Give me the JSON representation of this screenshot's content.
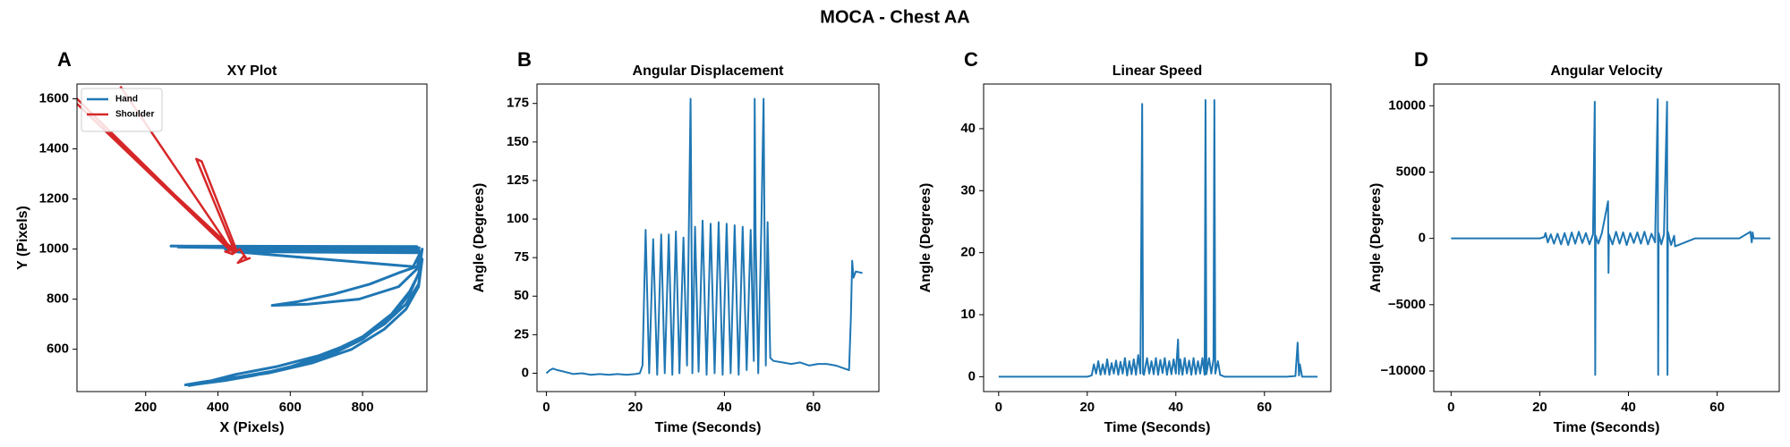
{
  "title": "MOCA - Chest AA",
  "chart_data": [
    {
      "type": "line",
      "panel_label": "A",
      "title": "XY Plot",
      "x_label": "X (Pixels)",
      "y_label": "Y (Pixels)",
      "xlim": [
        10,
        978
      ],
      "ylim": [
        431,
        1659
      ],
      "xticks": [
        200,
        400,
        600,
        800
      ],
      "yticks": [
        600,
        800,
        1000,
        1200,
        1400,
        1600
      ],
      "legend": "upper left",
      "series": [
        {
          "name": "Hand",
          "color": "#1f77b4",
          "x": [
            960,
            270,
            950,
            290,
            955,
            420,
            960,
            440,
            940,
            965,
            955,
            930,
            880,
            800,
            700,
            600,
            500,
            420,
            340,
            310,
            360,
            460,
            580,
            700,
            800,
            880,
            930,
            960,
            955,
            920,
            860,
            780,
            680,
            560,
            450,
            370,
            320,
            420,
            540,
            660,
            770,
            860,
            920,
            955,
            965,
            950,
            900,
            820,
            720,
            620,
            550,
            650,
            790,
            900,
            950,
            960
          ],
          "values": [
            1005,
            1012,
            1010,
            1008,
            995,
            1000,
            985,
            990,
            930,
            1000,
            900,
            830,
            740,
            650,
            580,
            530,
            495,
            475,
            460,
            458,
            470,
            490,
            520,
            570,
            640,
            730,
            820,
            920,
            860,
            780,
            700,
            630,
            575,
            530,
            500,
            470,
            455,
            480,
            505,
            545,
            600,
            680,
            760,
            850,
            960,
            930,
            905,
            860,
            820,
            790,
            775,
            780,
            800,
            850,
            920,
            990
          ]
        },
        {
          "name": "Shoulder",
          "color": "#d62728",
          "x": [
            130,
            440,
            10,
            430,
            10,
            445,
            340,
            355,
            450,
            420,
            440,
            460,
            480,
            470,
            455,
            490
          ],
          "values": [
            1650,
            990,
            1600,
            1000,
            1580,
            995,
            1360,
            1350,
            1000,
            990,
            980,
            1000,
            960,
            970,
            945,
            965
          ]
        }
      ]
    },
    {
      "type": "line",
      "panel_label": "B",
      "title": "Angular Displacement",
      "x_label": "Time (Seconds)",
      "y_label": "Angle (Degrees)",
      "xlim": [
        -2.1,
        74.7
      ],
      "ylim": [
        -11.9,
        187.6
      ],
      "xticks": [
        0,
        20,
        40,
        60
      ],
      "yticks": [
        0,
        25,
        50,
        75,
        100,
        125,
        150,
        175
      ],
      "color": "#1f77b4",
      "x": [
        0,
        0.8,
        1.5,
        2.5,
        4,
        6,
        8,
        10,
        12,
        14,
        16,
        18,
        20,
        21,
        21.6,
        22.3,
        23.1,
        24,
        24.9,
        25.8,
        26.6,
        27.5,
        28.3,
        29.1,
        29.9,
        30.8,
        31.6,
        32.4,
        32.6,
        32.8,
        33.4,
        34.2,
        35.1,
        36,
        36.9,
        37.8,
        38.7,
        39.6,
        40.5,
        41.4,
        42.3,
        43.2,
        44.1,
        45,
        45.9,
        46.6,
        46.8,
        47,
        47.6,
        48.3,
        48.8,
        49,
        49.3,
        49.7,
        50.3,
        51,
        53,
        55,
        57,
        59,
        61,
        63,
        65,
        67,
        68,
        68.4,
        68.7,
        69,
        69.5,
        71
      ],
      "values": [
        0,
        2,
        3,
        2,
        1,
        -0.5,
        0,
        -1,
        -0.5,
        -1,
        -0.5,
        -1,
        -0.5,
        0,
        5,
        93,
        0,
        87,
        -1,
        90,
        0,
        90,
        -1,
        92,
        0,
        88,
        5,
        178,
        90,
        0,
        95,
        1,
        99,
        -1,
        97,
        0,
        98,
        -1,
        97,
        0,
        96,
        -1,
        95,
        2,
        93,
        8,
        178,
        90,
        0,
        96,
        178,
        95,
        5,
        98,
        10,
        8,
        7,
        6,
        7,
        5,
        6,
        6,
        5,
        3,
        2,
        35,
        73,
        62,
        66,
        65
      ]
    },
    {
      "type": "line",
      "panel_label": "C",
      "title": "Linear Speed",
      "x_label": "Time (Seconds)",
      "y_label": "Angle (Degrees)",
      "xlim": [
        -3.4,
        75
      ],
      "ylim": [
        -2.4,
        47.2
      ],
      "xticks": [
        0,
        20,
        40,
        60
      ],
      "yticks": [
        0,
        10,
        20,
        30,
        40
      ],
      "color": "#1f77b4",
      "x": [
        0,
        5,
        10,
        15,
        20,
        21,
        21.5,
        22,
        22.5,
        23,
        23.5,
        24,
        24.5,
        25,
        25.5,
        26,
        26.5,
        27,
        27.5,
        28,
        28.5,
        29,
        29.5,
        30,
        30.5,
        31,
        31.5,
        32,
        32.4,
        32.6,
        32.8,
        33.5,
        34,
        34.5,
        35,
        35.5,
        36,
        36.5,
        37,
        37.5,
        38,
        38.5,
        39,
        39.5,
        40,
        40.5,
        40.7,
        41,
        41.5,
        42,
        42.5,
        43,
        43.5,
        44,
        44.5,
        45,
        45.5,
        46,
        46.5,
        46.7,
        46.9,
        47.5,
        48,
        48.5,
        48.7,
        48.9,
        49.5,
        50,
        51,
        55,
        60,
        65,
        67,
        67.5,
        67.8,
        68,
        68.5,
        72
      ],
      "values": [
        0,
        0,
        0,
        0,
        0,
        0.2,
        2,
        0.5,
        2.5,
        0.3,
        2,
        0.4,
        2.8,
        0.3,
        2.2,
        0.5,
        2.6,
        0.3,
        2.4,
        0.5,
        3,
        0.2,
        2.5,
        0.4,
        2.8,
        0.3,
        3.5,
        0.5,
        44,
        0.5,
        0.3,
        3,
        0.5,
        2.5,
        0.4,
        3,
        0.3,
        2.7,
        0.6,
        3,
        0.3,
        2.5,
        0.4,
        2.8,
        0.5,
        6,
        0.4,
        2.8,
        0.3,
        3,
        0.5,
        2.6,
        0.3,
        3,
        0.4,
        2.5,
        0.5,
        3,
        0.3,
        44.6,
        0.4,
        3,
        0.5,
        2.8,
        44.6,
        0.5,
        2.5,
        0.3,
        0,
        0,
        0,
        0,
        0.1,
        5.5,
        0.2,
        2,
        0,
        0
      ]
    },
    {
      "type": "line",
      "panel_label": "D",
      "title": "Angular Velocity",
      "x_label": "Time (Seconds)",
      "y_label": "Angle (Degrees)",
      "xlim": [
        -3.9,
        74
      ],
      "ylim": [
        -11552,
        11638
      ],
      "xticks": [
        0,
        20,
        40,
        60
      ],
      "yticks": [
        {
          "value": -10000,
          "label": "−10000"
        },
        {
          "value": -5000,
          "label": "−5000"
        },
        0,
        5000,
        10000
      ],
      "color": "#1f77b4",
      "x": [
        0,
        10,
        20,
        21,
        21.3,
        21.8,
        22.5,
        23.2,
        24,
        24.8,
        25.6,
        26.4,
        27.2,
        28,
        28.8,
        29.6,
        30.4,
        31.2,
        32,
        32.4,
        32.5,
        32.6,
        33.2,
        34,
        35.4,
        35.5,
        35.6,
        36.4,
        37.2,
        38,
        38.8,
        39.6,
        40.4,
        41.2,
        42,
        42.8,
        43.6,
        44.4,
        45.2,
        46,
        46.6,
        46.7,
        46.8,
        47.4,
        48,
        48.7,
        48.8,
        48.9,
        49.6,
        50.3,
        50.5,
        55,
        60,
        65,
        67.5,
        67.8,
        68,
        68.2,
        72
      ],
      "values": [
        0,
        0,
        0,
        100,
        400,
        -300,
        300,
        -400,
        350,
        -450,
        400,
        -500,
        450,
        -400,
        500,
        -350,
        400,
        -450,
        300,
        10300,
        -10300,
        200,
        -400,
        400,
        2800,
        -2600,
        300,
        -450,
        500,
        -400,
        450,
        -500,
        400,
        -350,
        450,
        -400,
        500,
        -450,
        350,
        -300,
        10500,
        -10300,
        400,
        -450,
        300,
        10300,
        -10300,
        500,
        -500,
        200,
        -600,
        0,
        0,
        0,
        500,
        -300,
        450,
        0,
        0
      ]
    }
  ]
}
